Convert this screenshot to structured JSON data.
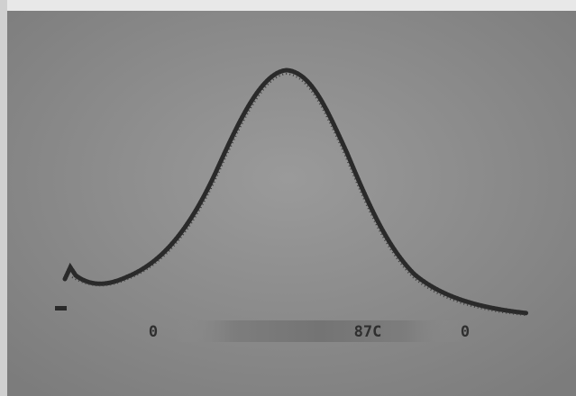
{
  "readout": {
    "left": "0",
    "center": "87C",
    "right": "0"
  }
}
